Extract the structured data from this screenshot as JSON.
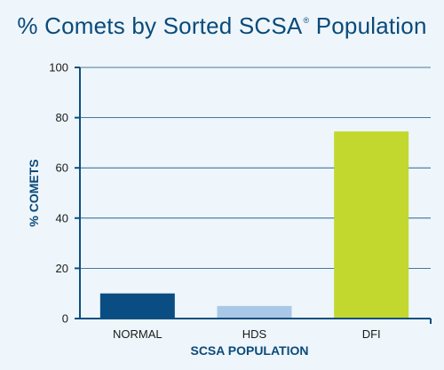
{
  "colors": {
    "background": "#eef6fb",
    "title": "#0a4a7a",
    "axis": "#0d4f80",
    "grid": "#0d4f80",
    "label": "#0a4a7a",
    "tick_text": "#1a1a1a"
  },
  "chart_data": {
    "type": "bar",
    "title_main": "% Comets by Sorted SCSA",
    "title_mark": "®",
    "title_suffix": " Population",
    "xlabel": "SCSA POPULATION",
    "ylabel": "% COMETS",
    "ylim": [
      0,
      100
    ],
    "yticks": [
      0,
      20,
      40,
      60,
      80,
      100
    ],
    "grid": true,
    "categories": [
      "NORMAL",
      "HDS",
      "DFI"
    ],
    "values": [
      10,
      5,
      74.5
    ],
    "bar_colors": [
      "#0a4d82",
      "#a9c8e8",
      "#c2d82e"
    ]
  }
}
